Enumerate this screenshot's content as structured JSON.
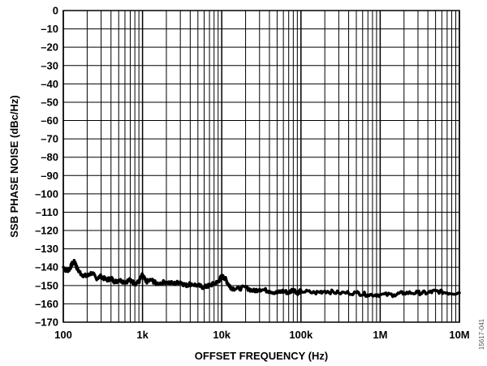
{
  "chart_data": {
    "type": "line",
    "title": "",
    "xlabel": "OFFSET FREQUENCY (Hz)",
    "ylabel": "SSB PHASE NOISE (dBc/Hz)",
    "x_scale": "log",
    "xlim": [
      100,
      10000000
    ],
    "ylim": [
      -170,
      0
    ],
    "x_tick_labels": [
      "100",
      "1k",
      "10k",
      "100k",
      "1M",
      "10M"
    ],
    "x_tick_values": [
      100,
      1000,
      10000,
      100000,
      1000000,
      10000000
    ],
    "y_tick_values": [
      0,
      -10,
      -20,
      -30,
      -40,
      -50,
      -60,
      -70,
      -80,
      -90,
      -100,
      -110,
      -120,
      -130,
      -140,
      -150,
      -160,
      -170
    ],
    "y_tick_labels": [
      "0",
      "–10",
      "–20",
      "–30",
      "–40",
      "–50",
      "–60",
      "–70",
      "–80",
      "–90",
      "–100",
      "–110",
      "–120",
      "–130",
      "–140",
      "–150",
      "–160",
      "–170"
    ],
    "grid": true,
    "line_color": "#000000",
    "series": [
      {
        "x": [
          100,
          110,
          120,
          130,
          140,
          150,
          170,
          200,
          230,
          260,
          300,
          350,
          400,
          450,
          500,
          600,
          700,
          800,
          900,
          1000,
          1100,
          1300,
          1500,
          2000,
          2500,
          3000,
          3500,
          4000,
          5000,
          6000,
          7000,
          8000,
          9000,
          10000,
          11000,
          12000,
          13000,
          15000,
          20000,
          25000,
          30000,
          40000,
          50000,
          60000,
          70000,
          80000,
          90000,
          100000,
          150000,
          200000,
          300000,
          500000,
          700000,
          1000000,
          1500000,
          2000000,
          3000000,
          4000000,
          5000000,
          7000000,
          10000000
        ],
        "y": [
          -140,
          -142,
          -141,
          -138,
          -137,
          -141,
          -144,
          -145,
          -143,
          -146,
          -145,
          -147,
          -146,
          -148,
          -147,
          -148,
          -147,
          -149,
          -148,
          -144,
          -148,
          -147,
          -149,
          -148,
          -149,
          -148,
          -150,
          -149,
          -150,
          -151,
          -150,
          -149,
          -148,
          -145,
          -146,
          -149,
          -151,
          -152,
          -151,
          -153,
          -152,
          -153,
          -154,
          -153,
          -154,
          -152,
          -154,
          -153,
          -154,
          -153,
          -154,
          -154,
          -155,
          -155,
          -155,
          -154,
          -154,
          -154,
          -153,
          -154,
          -154
        ]
      }
    ],
    "side_note": "15617-041"
  }
}
